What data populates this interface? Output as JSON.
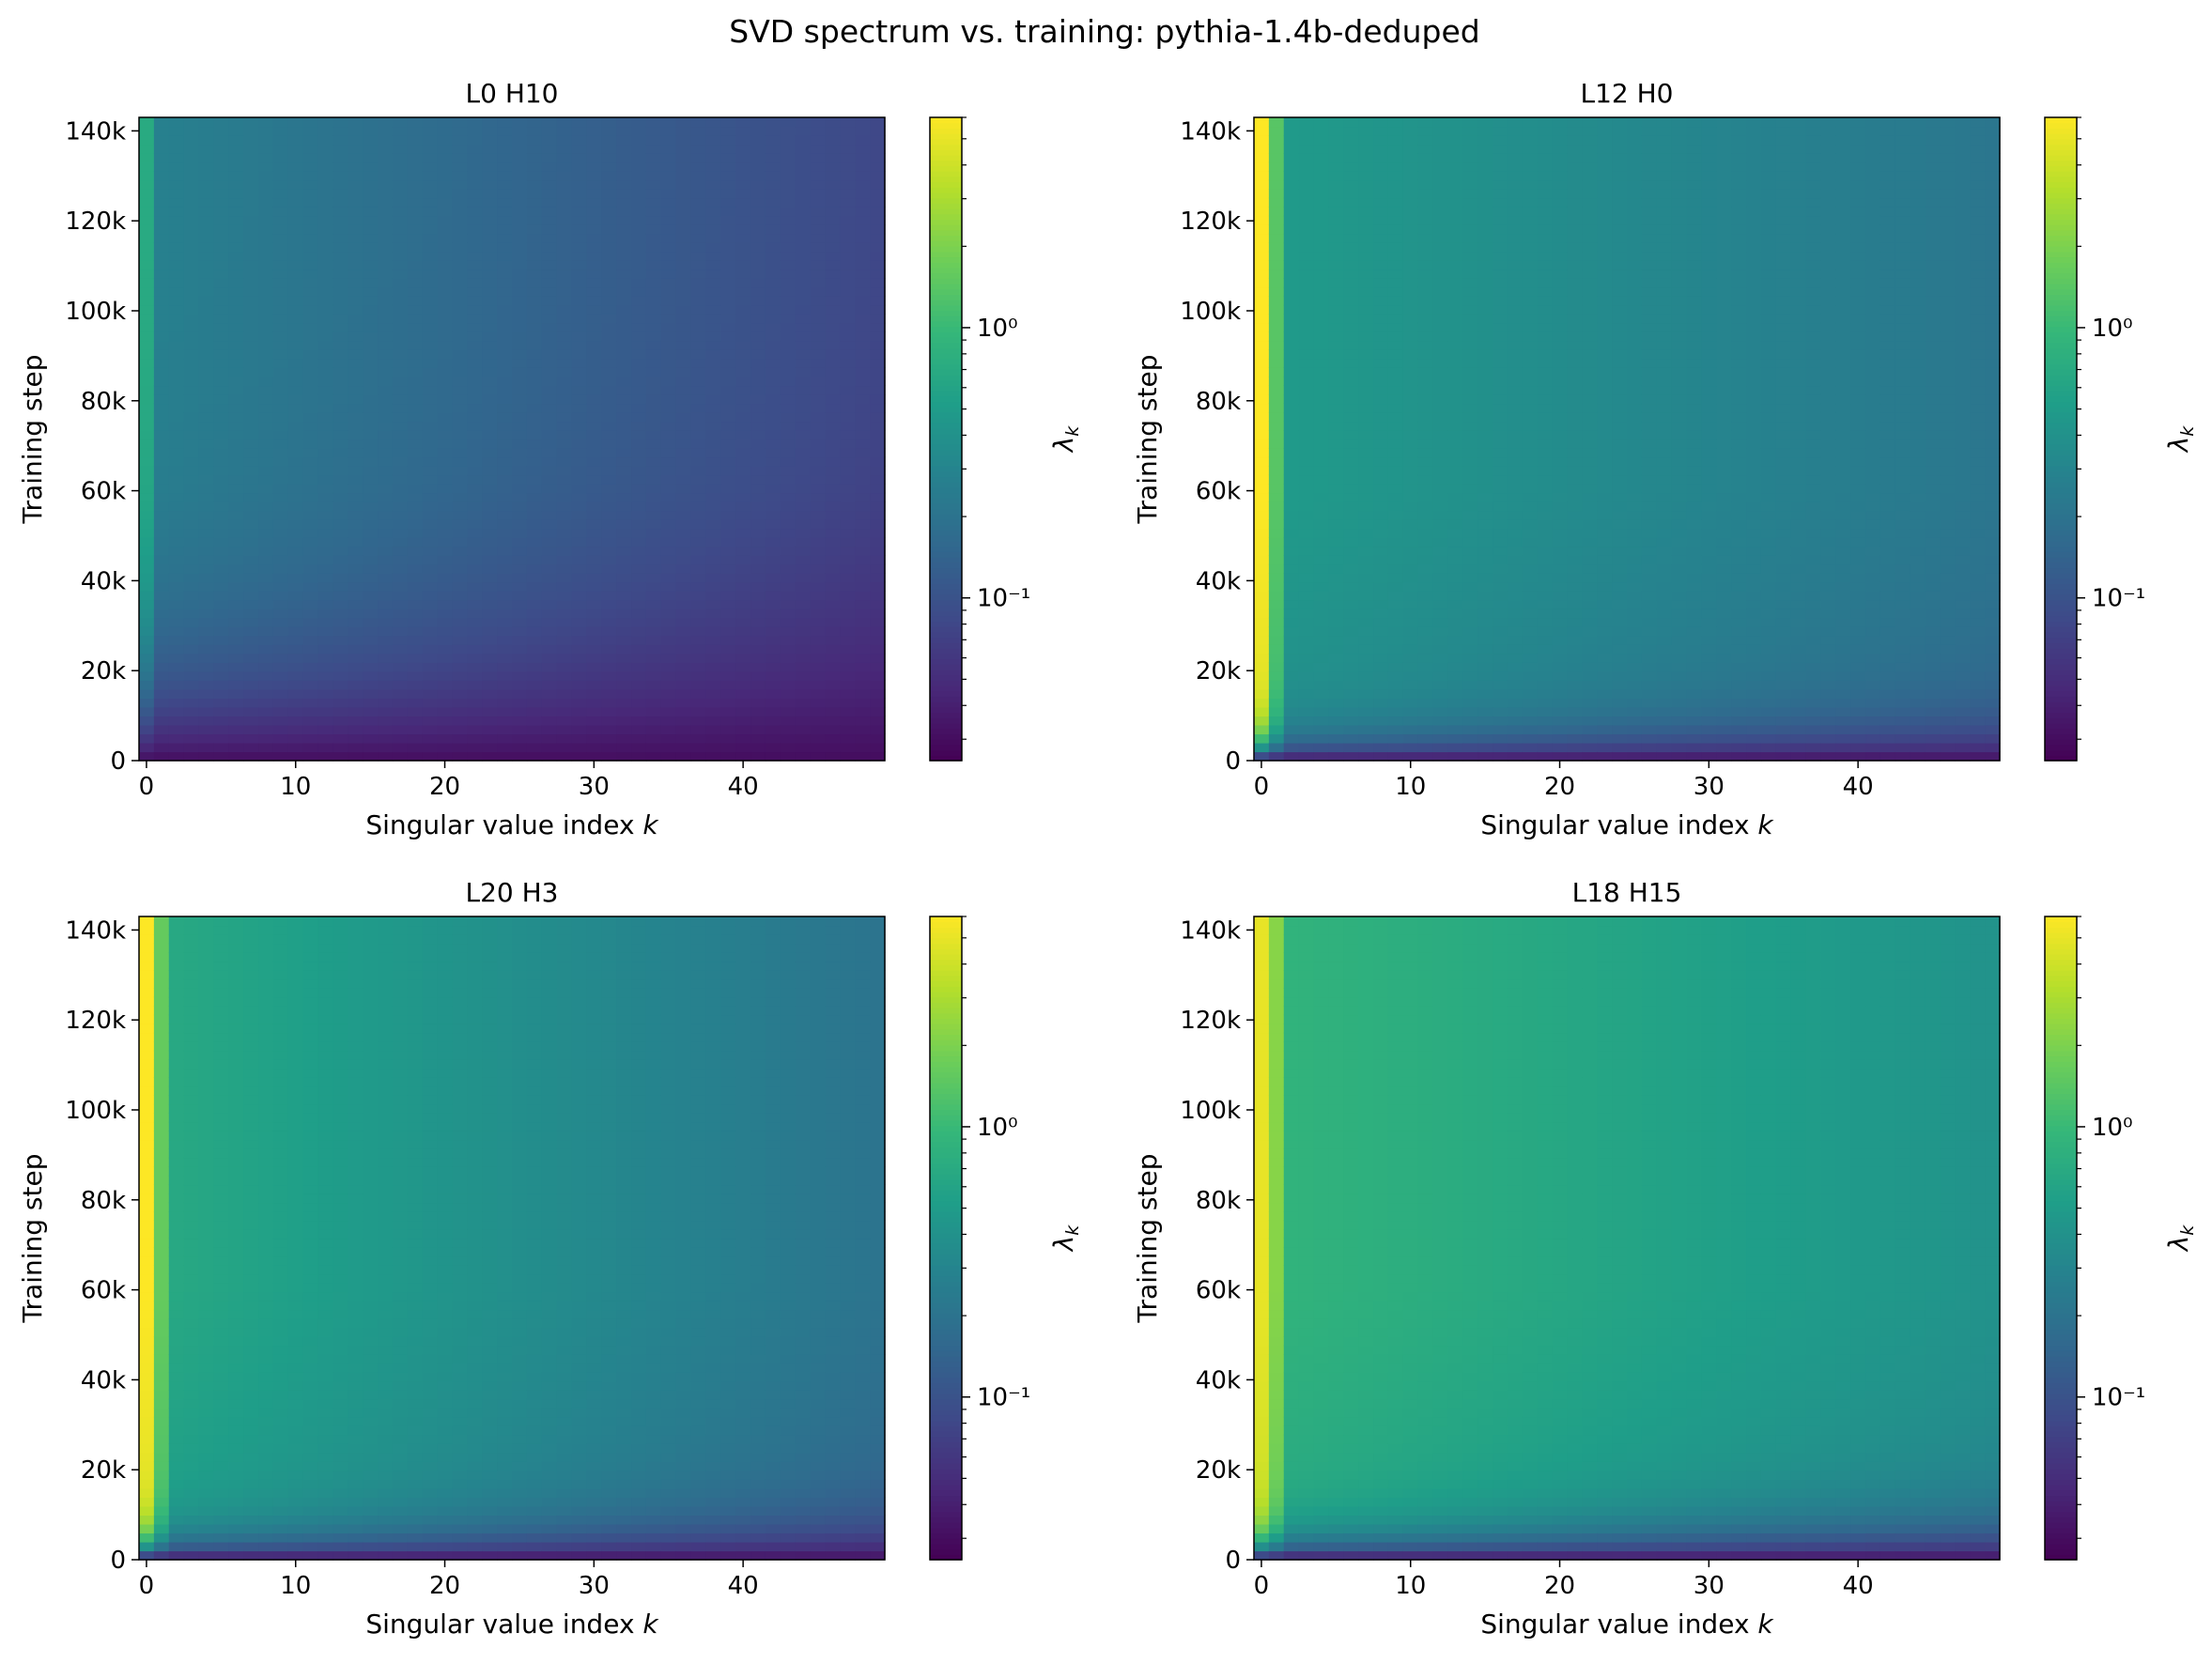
{
  "figure": {
    "title": "SVD spectrum vs. training: pythia-1.4b-deduped"
  },
  "colormap": {
    "name": "viridis",
    "stops": [
      "#440154",
      "#482878",
      "#3e4a89",
      "#31688e",
      "#26828e",
      "#1f9e89",
      "#35b779",
      "#6ece58",
      "#b5de2b",
      "#fde725"
    ]
  },
  "chart_data": [
    {
      "type": "heatmap",
      "title": "L0 H10",
      "xlabel": "Singular value index k",
      "ylabel": "Training step",
      "x_ticks": [
        0,
        10,
        20,
        30,
        40
      ],
      "y_ticks": [
        "0",
        "20k",
        "40k",
        "60k",
        "80k",
        "100k",
        "120k",
        "140k"
      ],
      "y_tick_values": [
        0,
        20000,
        40000,
        60000,
        80000,
        100000,
        120000,
        140000
      ],
      "xlim": [
        -0.5,
        49.5
      ],
      "ylim": [
        0,
        143000
      ],
      "colorbar_label": "λk",
      "colorbar_scale": "log",
      "colorbar_ticks": [
        "10⁰",
        "10⁻¹"
      ],
      "colorbar_range": [
        0.025,
        6.0
      ],
      "model": {
        "lead": 0.7,
        "lead_cols": 1,
        "base": 0.28,
        "decay": 0.025,
        "early_floor": 0.03,
        "ramp": 18000,
        "ramp_growth": 10000
      }
    },
    {
      "type": "heatmap",
      "title": "L12 H0",
      "xlabel": "Singular value index k",
      "ylabel": "Training step",
      "x_ticks": [
        0,
        10,
        20,
        30,
        40
      ],
      "y_ticks": [
        "0",
        "20k",
        "40k",
        "60k",
        "80k",
        "100k",
        "120k",
        "140k"
      ],
      "y_tick_values": [
        0,
        20000,
        40000,
        60000,
        80000,
        100000,
        120000,
        140000
      ],
      "xlim": [
        -0.5,
        49.5
      ],
      "ylim": [
        0,
        143000
      ],
      "colorbar_label": "λk",
      "colorbar_scale": "log",
      "colorbar_ticks": [
        "10⁰",
        "10⁻¹"
      ],
      "colorbar_range": [
        0.025,
        6.0
      ],
      "model": {
        "lead": 6.0,
        "lead_cols": 1,
        "second": 1.4,
        "base": 0.5,
        "decay": 0.017,
        "early_floor": 0.03,
        "ramp": 4000,
        "ramp_growth": 3000
      }
    },
    {
      "type": "heatmap",
      "title": "L20 H3",
      "xlabel": "Singular value index k",
      "ylabel": "Training step",
      "x_ticks": [
        0,
        10,
        20,
        30,
        40
      ],
      "y_ticks": [
        "0",
        "20k",
        "40k",
        "60k",
        "80k",
        "100k",
        "120k",
        "140k"
      ],
      "y_tick_values": [
        0,
        20000,
        40000,
        60000,
        80000,
        100000,
        120000,
        140000
      ],
      "xlim": [
        -0.5,
        49.5
      ],
      "ylim": [
        0,
        143000
      ],
      "colorbar_label": "λk",
      "colorbar_scale": "log",
      "colorbar_ticks": [
        "10⁰",
        "10⁻¹"
      ],
      "colorbar_range": [
        0.025,
        6.0
      ],
      "model": {
        "lead": 6.0,
        "lead_cols": 1,
        "second": 1.6,
        "base": 0.7,
        "decay": 0.025,
        "early_floor": 0.03,
        "ramp": 4000,
        "ramp_growth": 3000
      }
    },
    {
      "type": "heatmap",
      "title": "L18 H15",
      "xlabel": "Singular value index k",
      "ylabel": "Training step",
      "x_ticks": [
        0,
        10,
        20,
        30,
        40
      ],
      "y_ticks": [
        "0",
        "20k",
        "40k",
        "60k",
        "80k",
        "100k",
        "120k",
        "140k"
      ],
      "y_tick_values": [
        0,
        20000,
        40000,
        60000,
        80000,
        100000,
        120000,
        140000
      ],
      "xlim": [
        -0.5,
        49.5
      ],
      "ylim": [
        0,
        143000
      ],
      "colorbar_label": "λk",
      "colorbar_scale": "log",
      "colorbar_ticks": [
        "10⁰",
        "10⁻¹"
      ],
      "colorbar_range": [
        0.025,
        6.0
      ],
      "model": {
        "lead": 5.0,
        "lead_cols": 1,
        "second": 2.2,
        "base": 0.9,
        "decay": 0.016,
        "early_floor": 0.03,
        "ramp": 4000,
        "ramp_growth": 3000
      }
    }
  ]
}
